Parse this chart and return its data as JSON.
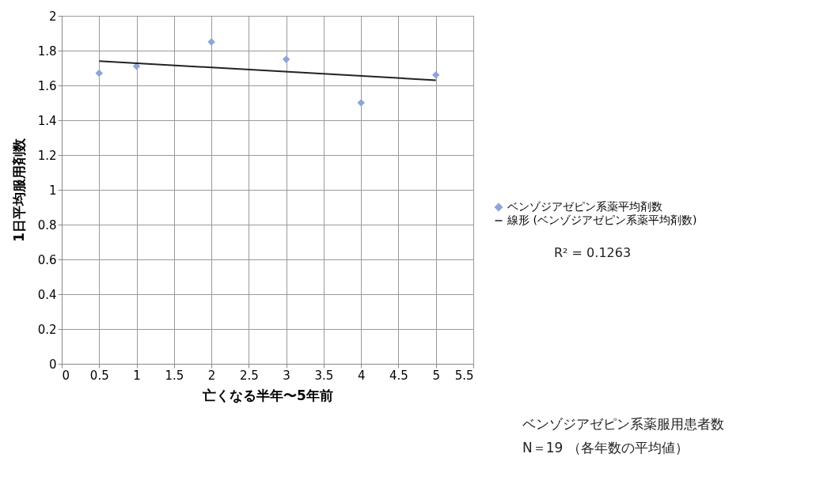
{
  "chart_data": {
    "type": "scatter",
    "xlabel": "亡くなる半年〜5年前",
    "ylabel": "1日平均服用剤数",
    "xlim": [
      0,
      5.5
    ],
    "xticks": [
      0,
      0.5,
      1,
      1.5,
      2,
      2.5,
      3,
      3.5,
      4,
      4.5,
      5,
      5.5
    ],
    "ylim": [
      0,
      2
    ],
    "yticks": [
      0,
      0.2,
      0.4,
      0.6,
      0.8,
      1,
      1.2,
      1.4,
      1.6,
      1.8,
      2
    ],
    "grid": true,
    "legend": "right",
    "series": [
      {
        "name": "ベンゾジアゼピン系薬平均剤数",
        "marker": "diamond",
        "color": "#8ea5d8",
        "x": [
          0.5,
          1,
          2,
          3,
          4,
          5
        ],
        "values": [
          1.67,
          1.71,
          1.85,
          1.75,
          1.5,
          1.66
        ]
      },
      {
        "name": "線形 (ベンゾジアゼピン系薬平均剤数)",
        "type": "line",
        "color": "#222222",
        "x": [
          0.5,
          5
        ],
        "values": [
          1.74,
          1.63
        ]
      }
    ],
    "annotations": [
      "R² = 0.1263",
      "ベンゾジアゼピン系薬服用患者数",
      "N＝19 （各年数の平均値）"
    ]
  }
}
